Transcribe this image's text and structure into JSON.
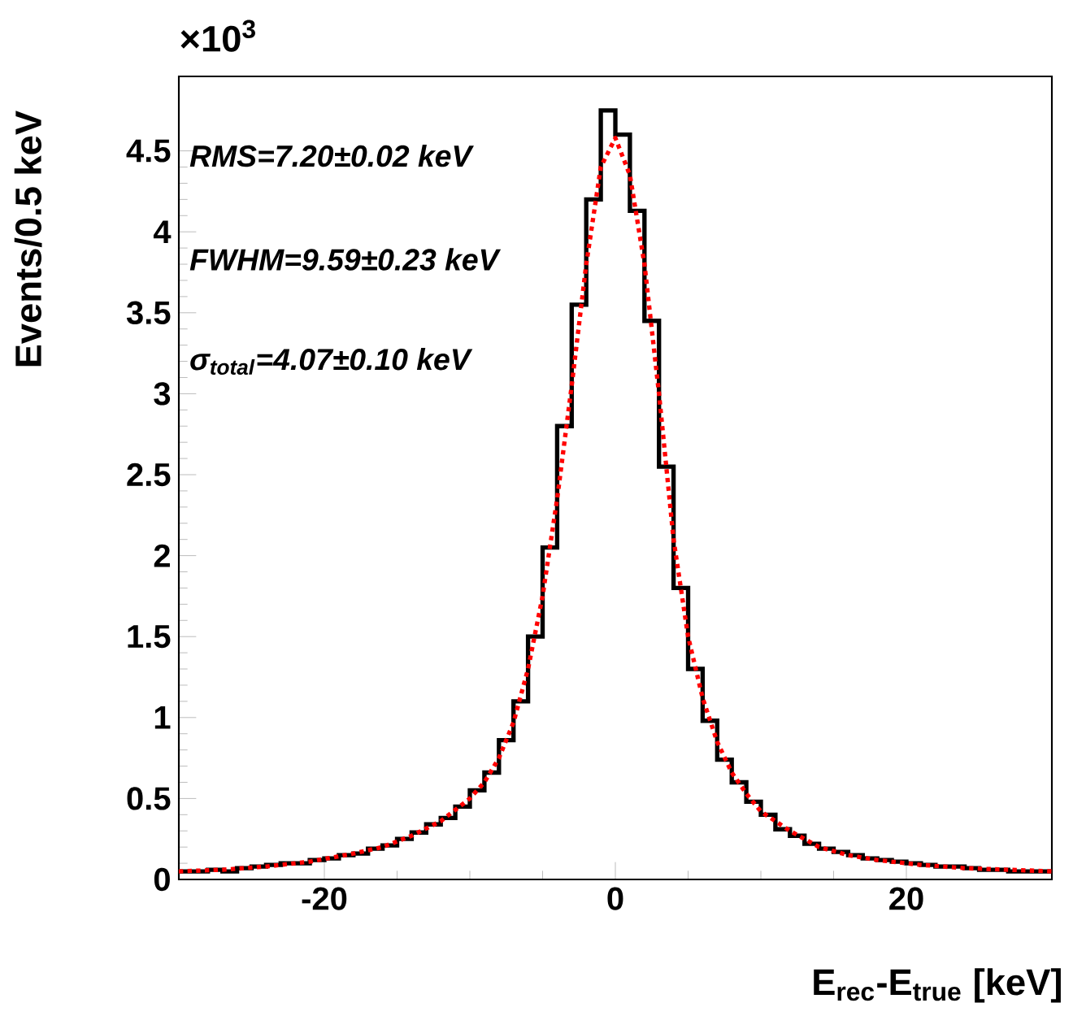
{
  "chart_data": {
    "type": "histogram",
    "xlabel": "E$_{rec}$-E$_{true}$ [keV]",
    "ylabel": "Events/0.5 keV",
    "annotations": [
      "×10$^{3}$",
      "RMS=7.20±0.02 keV",
      "FWHM=9.59±0.23 keV",
      "σ$_{total}$=4.07±0.10 keV"
    ],
    "bins": [
      -30,
      -29,
      -28,
      -27,
      -26,
      -25,
      -24,
      -23,
      -22,
      -21,
      -20,
      -19,
      -18,
      -17,
      -16,
      -15,
      -14,
      -13,
      -12,
      -11,
      -10,
      -9,
      -8,
      -7,
      -6,
      -5,
      -4,
      -3,
      -2,
      -1,
      0,
      1,
      2,
      3,
      4,
      5,
      6,
      7,
      8,
      9,
      10,
      11,
      12,
      13,
      14,
      15,
      16,
      17,
      18,
      19,
      20,
      21,
      22,
      23,
      24,
      25,
      26,
      27,
      28,
      29,
      30
    ],
    "series": [
      {
        "color": "#000000",
        "values": [
          0.05,
          0.05,
          0.06,
          0.05,
          0.07,
          0.08,
          0.09,
          0.1,
          0.1,
          0.12,
          0.13,
          0.15,
          0.16,
          0.19,
          0.21,
          0.25,
          0.29,
          0.34,
          0.38,
          0.45,
          0.55,
          0.66,
          0.86,
          1.1,
          1.5,
          2.05,
          2.8,
          3.55,
          4.2,
          4.75,
          4.6,
          4.13,
          3.45,
          2.55,
          1.8,
          1.3,
          0.98,
          0.74,
          0.6,
          0.48,
          0.4,
          0.31,
          0.27,
          0.22,
          0.19,
          0.17,
          0.15,
          0.13,
          0.12,
          0.11,
          0.1,
          0.09,
          0.08,
          0.08,
          0.07,
          0.06,
          0.06,
          0.05,
          0.05,
          0.05
        ]
      },
      {
        "type": "line",
        "color": "#ff0000",
        "line_style": "dotted",
        "x": [
          -30,
          -27,
          -24,
          -21,
          -18,
          -16,
          -14,
          -12,
          -10,
          -9,
          -8,
          -7,
          -6,
          -5,
          -4,
          -3,
          -2,
          -1,
          0,
          1,
          2,
          3,
          4,
          5,
          6,
          7,
          8,
          9,
          10,
          12,
          14,
          16,
          18,
          21,
          24,
          27,
          30
        ],
        "values": [
          0.05,
          0.06,
          0.08,
          0.11,
          0.16,
          0.2,
          0.27,
          0.36,
          0.5,
          0.6,
          0.75,
          0.97,
          1.3,
          1.75,
          2.35,
          3.05,
          3.8,
          4.4,
          4.58,
          4.35,
          3.8,
          3.0,
          2.1,
          1.5,
          1.12,
          0.85,
          0.66,
          0.53,
          0.42,
          0.3,
          0.2,
          0.15,
          0.12,
          0.09,
          0.07,
          0.06,
          0.05
        ]
      }
    ],
    "xlim": [
      -30,
      30
    ],
    "ylim": [
      0,
      4.96
    ],
    "xticks": [
      -20,
      0,
      20
    ],
    "yticks": [
      0,
      0.5,
      1,
      1.5,
      2,
      2.5,
      3,
      3.5,
      4,
      4.5
    ],
    "grid": false
  }
}
